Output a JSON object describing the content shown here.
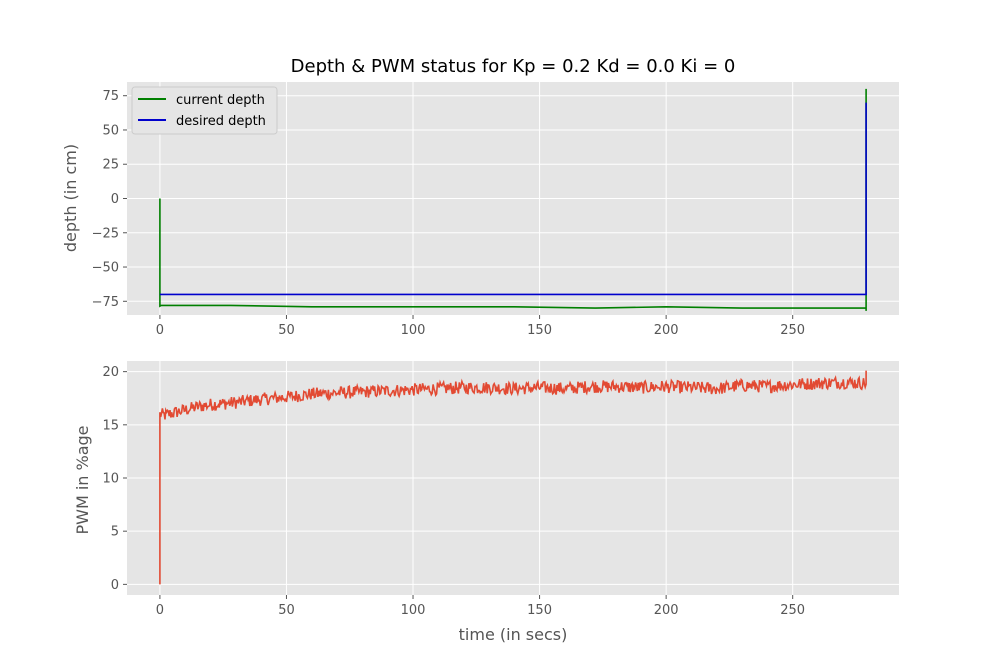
{
  "figure": {
    "title": "Depth & PWM status for Kp = 0.2 Kd = 0.0 Ki = 0",
    "background": "#ffffff",
    "axes_background": "#e5e5e5",
    "grid_color": "#ffffff"
  },
  "chart_data": [
    {
      "type": "line",
      "title": "Depth & PWM status for Kp = 0.2 Kd = 0.0 Ki = 0",
      "xlabel": "",
      "ylabel": "depth (in cm)",
      "xlim": [
        -13,
        292
      ],
      "ylim": [
        -85,
        85
      ],
      "xticks": [
        0,
        50,
        100,
        150,
        200,
        250
      ],
      "yticks": [
        75,
        50,
        25,
        0,
        -25,
        -50,
        -75
      ],
      "grid": true,
      "legend": "top-left",
      "series": [
        {
          "name": "current depth",
          "color": "#008000",
          "x": [
            0,
            0,
            0.5,
            5,
            20,
            28,
            60,
            100,
            140,
            172,
            200,
            230,
            262,
            278,
            279,
            279,
            279
          ],
          "y": [
            0,
            -78.5,
            -78,
            -78,
            -78,
            -78,
            -79,
            -79,
            -79,
            -80,
            -79,
            -80,
            -80,
            -80,
            -80,
            80,
            -82
          ]
        },
        {
          "name": "desired depth",
          "color": "#0000cc",
          "x": [
            0,
            279,
            279
          ],
          "y": [
            -70,
            -70,
            70
          ]
        }
      ]
    },
    {
      "type": "line",
      "xlabel": "time (in secs)",
      "ylabel": "PWM in %age",
      "xlim": [
        -13,
        292
      ],
      "ylim": [
        -1,
        21
      ],
      "xticks": [
        0,
        50,
        100,
        150,
        200,
        250
      ],
      "yticks": [
        20,
        15,
        10,
        5,
        0
      ],
      "grid": true,
      "series": [
        {
          "color": "#e24a33",
          "x": [
            0,
            0,
            2,
            5,
            10,
            15,
            20,
            30,
            40,
            50,
            60,
            70,
            80,
            90,
            100,
            110,
            120,
            130,
            140,
            150,
            160,
            170,
            180,
            190,
            200,
            210,
            220,
            230,
            240,
            250,
            260,
            270,
            279,
            279
          ],
          "y": [
            0,
            16,
            15.9,
            16.1,
            16.4,
            16.7,
            16.9,
            17.1,
            17.4,
            17.6,
            17.9,
            18.0,
            18.1,
            18.2,
            18.3,
            18.4,
            18.5,
            18.5,
            18.4,
            18.5,
            18.4,
            18.6,
            18.6,
            18.5,
            18.6,
            18.5,
            18.4,
            18.7,
            18.6,
            18.8,
            18.9,
            19.0,
            18.9,
            20.1
          ],
          "noise": 0.6
        }
      ]
    }
  ]
}
